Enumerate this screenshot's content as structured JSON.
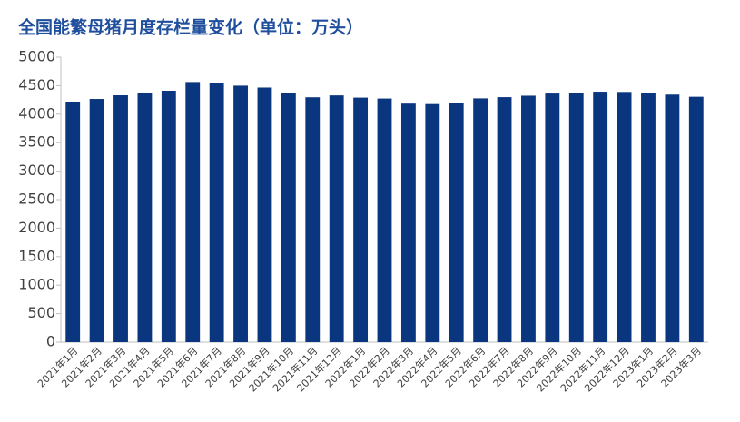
{
  "chart_data": {
    "type": "bar",
    "title": "全国能繁母猪月度存栏量变化（单位：万头）",
    "categories": [
      "2021年1月",
      "2021年2月",
      "2021年3月",
      "2021年4月",
      "2021年5月",
      "2021年6月",
      "2021年7月",
      "2021年8月",
      "2021年9月",
      "2021年10月",
      "2021年11月",
      "2021年12月",
      "2022年1月",
      "2022年2月",
      "2022年3月",
      "2022年4月",
      "2022年5月",
      "2022年6月",
      "2022年7月",
      "2022年8月",
      "2022年9月",
      "2022年10月",
      "2022年11月",
      "2022年12月",
      "2023年1月",
      "2023年2月",
      "2023年3月"
    ],
    "values": [
      4220,
      4267,
      4331,
      4379,
      4411,
      4564,
      4548,
      4500,
      4467,
      4363,
      4296,
      4329,
      4290,
      4274,
      4185,
      4177,
      4192,
      4277,
      4298,
      4324,
      4362,
      4379,
      4394,
      4390,
      4367,
      4343,
      4305
    ],
    "color": "#0a3680",
    "ylim": [
      0,
      5000
    ],
    "yticks": [
      0,
      500,
      1000,
      1500,
      2000,
      2500,
      3000,
      3500,
      4000,
      4500,
      5000
    ],
    "grid": false
  }
}
